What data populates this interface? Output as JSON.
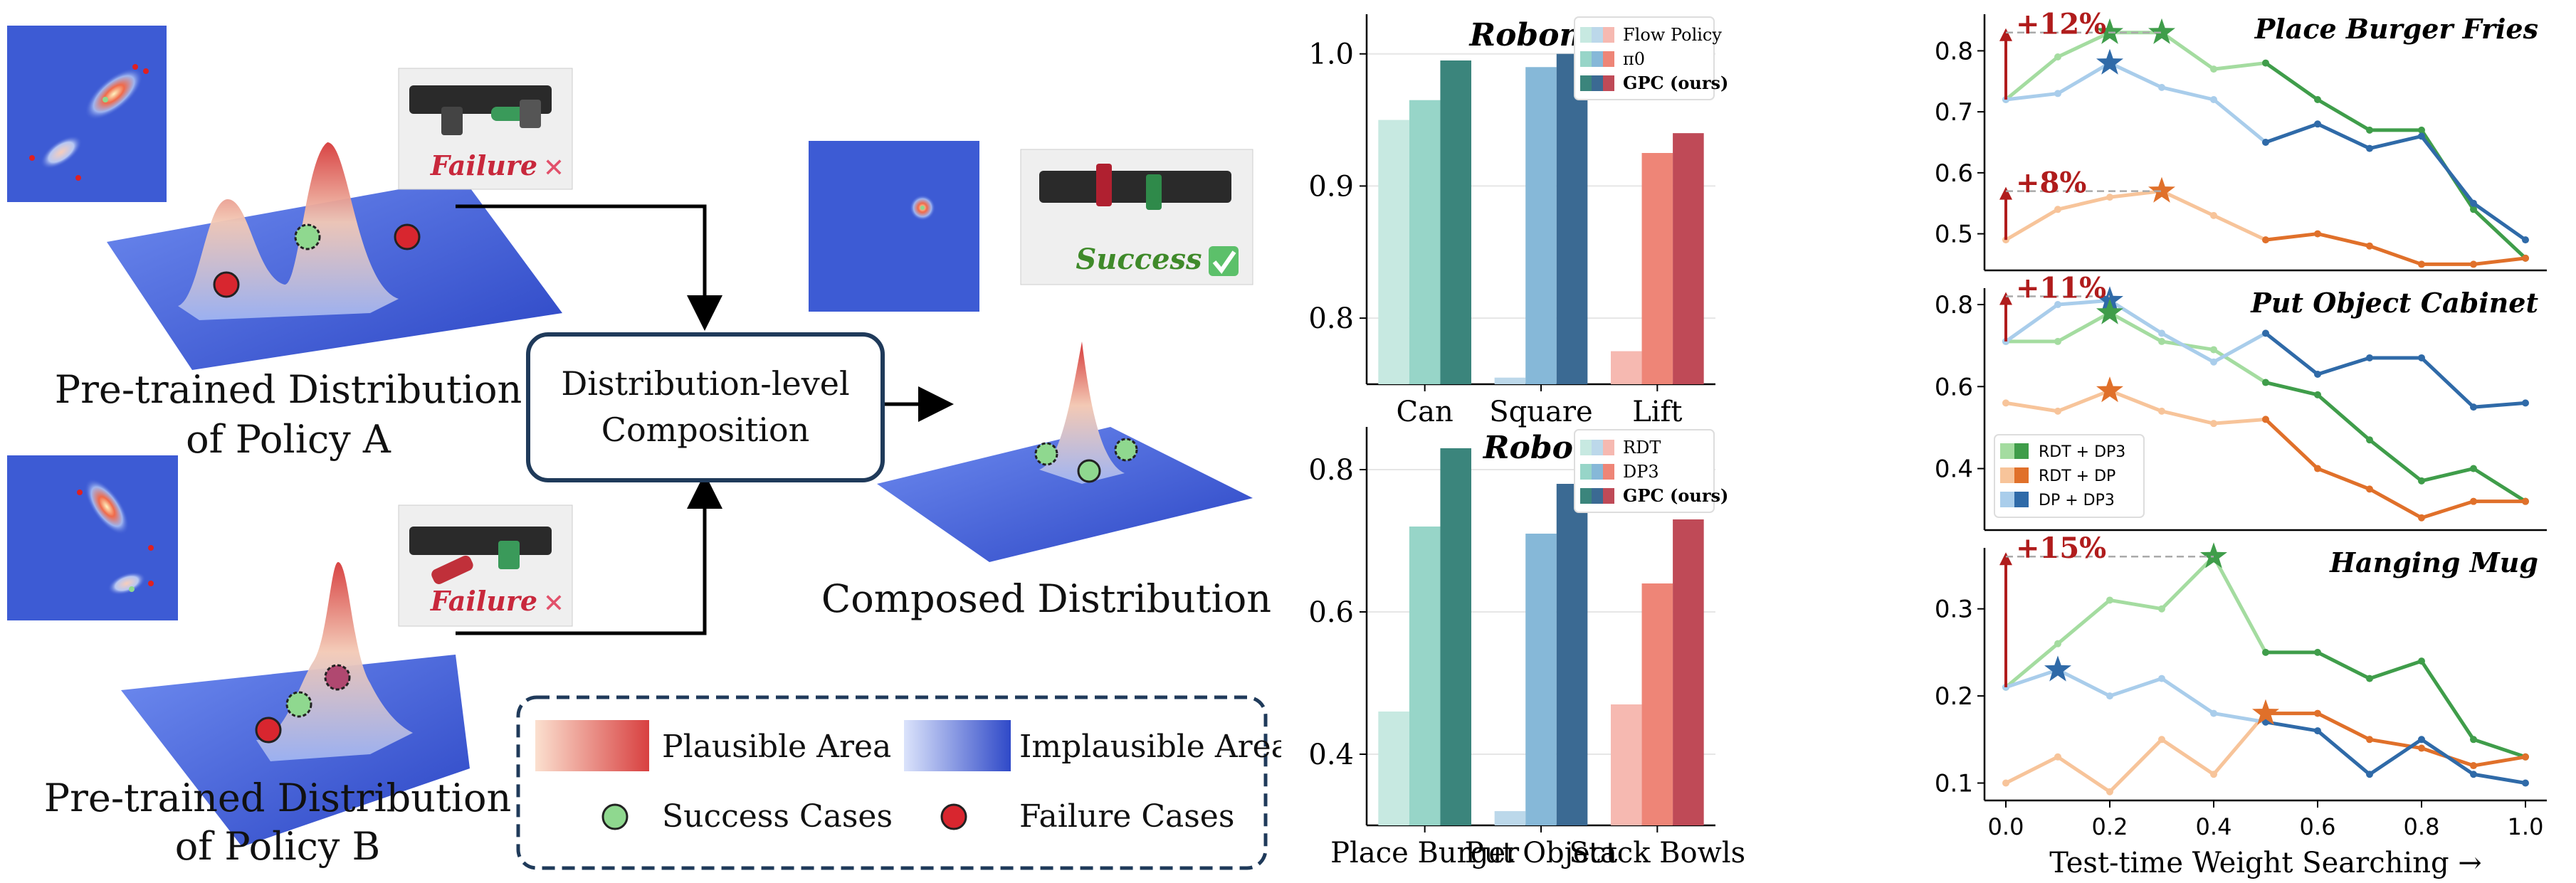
{
  "diagram": {
    "policy_a_label": [
      "Pre-trained Distribution",
      "of Policy A"
    ],
    "policy_b_label": [
      "Pre-trained Distribution",
      "of Policy B"
    ],
    "composition_box": [
      "Distribution-level",
      "Composition"
    ],
    "composed_label": "Composed Distribution",
    "failure_tag": "Failure",
    "success_tag": "Success",
    "legend": {
      "plausible": "Plausible Area",
      "implausible": "Implausible Area",
      "success": "Success Cases",
      "failure": "Failure Cases"
    },
    "colors": {
      "surface": "#3f5bd6",
      "peak": "#d63a3a",
      "success_dot": "#8fd88f",
      "failure_dot": "#d8262f",
      "box_border": "#1f3a5a"
    }
  },
  "chart_data": [
    {
      "type": "bar",
      "title": "Robomimic",
      "categories": [
        "Can",
        "Square",
        "Lift"
      ],
      "ylim": [
        0.75,
        1.03
      ],
      "yticks": [
        0.8,
        0.9,
        1.0
      ],
      "series": [
        {
          "name": "Flow Policy",
          "values": [
            0.95,
            0.755,
            0.775
          ]
        },
        {
          "name": "π0",
          "values": [
            0.965,
            0.99,
            0.925
          ]
        },
        {
          "name": "GPC (ours)",
          "values": [
            0.995,
            1.0,
            0.94
          ]
        }
      ],
      "legend_position": "top-right",
      "colors": [
        [
          "#c7e9e1",
          "#bcd8ea",
          "#f6b9b1"
        ],
        [
          "#97d5c8",
          "#86b8d8",
          "#ee8577"
        ],
        [
          "#3b857c",
          "#3b6a93",
          "#bf4a57"
        ]
      ]
    },
    {
      "type": "bar",
      "title": "RoboTwin",
      "categories": [
        "Place Burger",
        "Put Object",
        "Stack Bowls"
      ],
      "ylim": [
        0.3,
        0.86
      ],
      "yticks": [
        0.4,
        0.6,
        0.8
      ],
      "series": [
        {
          "name": "RDT",
          "values": [
            0.46,
            0.32,
            0.47
          ]
        },
        {
          "name": "DP3",
          "values": [
            0.72,
            0.71,
            0.64
          ]
        },
        {
          "name": "GPC (ours)",
          "values": [
            0.83,
            0.78,
            0.73
          ]
        }
      ],
      "legend_position": "top-right",
      "colors": [
        [
          "#c7e9e1",
          "#bcd8ea",
          "#f6b9b1"
        ],
        [
          "#97d5c8",
          "#86b8d8",
          "#ee8577"
        ],
        [
          "#3b857c",
          "#3b6a93",
          "#bf4a57"
        ]
      ]
    },
    {
      "type": "line",
      "title": "Place Burger Fries",
      "x": [
        0.0,
        0.1,
        0.2,
        0.3,
        0.4,
        0.5,
        0.6,
        0.7,
        0.8,
        0.9,
        1.0
      ],
      "ylim": [
        0.44,
        0.86
      ],
      "yticks": [
        0.5,
        0.6,
        0.7,
        0.8
      ],
      "series": [
        {
          "name": "RDT + DP3",
          "values": [
            0.72,
            0.79,
            0.83,
            0.83,
            0.77,
            0.78,
            0.72,
            0.67,
            0.67,
            0.54,
            0.46
          ]
        },
        {
          "name": "RDT + DP",
          "values": [
            0.49,
            0.54,
            0.56,
            0.57,
            0.53,
            0.49,
            0.5,
            0.48,
            0.45,
            0.45,
            0.46
          ]
        },
        {
          "name": "DP + DP3",
          "values": [
            0.72,
            0.73,
            0.78,
            0.74,
            0.72,
            0.65,
            0.68,
            0.64,
            0.66,
            0.55,
            0.49
          ]
        }
      ],
      "stars": [
        {
          "series": 0,
          "x": 0.2,
          "y": 0.83
        },
        {
          "series": 0,
          "x": 0.3,
          "y": 0.83
        },
        {
          "series": 2,
          "x": 0.2,
          "y": 0.78
        },
        {
          "series": 1,
          "x": 0.3,
          "y": 0.57
        }
      ],
      "annotations": [
        {
          "text": "+12%",
          "from": 0.72,
          "to": 0.83,
          "x_end": 0.3
        },
        {
          "text": "+8%",
          "from": 0.49,
          "to": 0.57,
          "x_end": 0.3
        }
      ]
    },
    {
      "type": "line",
      "title": "Put Object Cabinet",
      "x": [
        0.0,
        0.1,
        0.2,
        0.3,
        0.4,
        0.5,
        0.6,
        0.7,
        0.8,
        0.9,
        1.0
      ],
      "ylim": [
        0.25,
        0.84
      ],
      "yticks": [
        0.4,
        0.6,
        0.8
      ],
      "series": [
        {
          "name": "RDT + DP3",
          "values": [
            0.71,
            0.71,
            0.78,
            0.71,
            0.69,
            0.61,
            0.58,
            0.47,
            0.37,
            0.4,
            0.32
          ]
        },
        {
          "name": "RDT + DP",
          "values": [
            0.56,
            0.54,
            0.59,
            0.54,
            0.51,
            0.52,
            0.4,
            0.35,
            0.28,
            0.32,
            0.32
          ]
        },
        {
          "name": "DP + DP3",
          "values": [
            0.71,
            0.8,
            0.81,
            0.73,
            0.66,
            0.73,
            0.63,
            0.67,
            0.67,
            0.55,
            0.56
          ]
        }
      ],
      "stars": [
        {
          "series": 2,
          "x": 0.2,
          "y": 0.81
        },
        {
          "series": 0,
          "x": 0.2,
          "y": 0.78
        },
        {
          "series": 1,
          "x": 0.2,
          "y": 0.59
        }
      ],
      "annotations": [
        {
          "text": "+11%",
          "from": 0.71,
          "to": 0.82,
          "x_end": 0.2
        }
      ],
      "legend": [
        "RDT + DP3",
        "RDT + DP",
        "DP + DP3"
      ],
      "legend_position": "lower-left"
    },
    {
      "type": "line",
      "title": "Hanging Mug",
      "x": [
        0.0,
        0.1,
        0.2,
        0.3,
        0.4,
        0.5,
        0.6,
        0.7,
        0.8,
        0.9,
        1.0
      ],
      "ylim": [
        0.08,
        0.37
      ],
      "yticks": [
        0.1,
        0.2,
        0.3
      ],
      "xticks": [
        0.0,
        0.2,
        0.4,
        0.6,
        0.8,
        1.0
      ],
      "xlabel": "Test-time Weight Searching →",
      "series": [
        {
          "name": "RDT + DP3",
          "values": [
            0.21,
            0.26,
            0.31,
            0.3,
            0.36,
            0.25,
            0.25,
            0.22,
            0.24,
            0.15,
            0.13
          ]
        },
        {
          "name": "RDT + DP",
          "values": [
            0.1,
            0.13,
            0.09,
            0.15,
            0.11,
            0.18,
            0.18,
            0.15,
            0.14,
            0.12,
            0.13
          ]
        },
        {
          "name": "DP + DP3",
          "values": [
            0.21,
            0.23,
            0.2,
            0.22,
            0.18,
            0.17,
            0.16,
            0.11,
            0.15,
            0.11,
            0.1
          ]
        }
      ],
      "stars": [
        {
          "series": 0,
          "x": 0.4,
          "y": 0.36
        },
        {
          "series": 2,
          "x": 0.1,
          "y": 0.23
        },
        {
          "series": 1,
          "x": 0.5,
          "y": 0.18
        }
      ],
      "annotations": [
        {
          "text": "+15%",
          "from": 0.21,
          "to": 0.36,
          "x_end": 0.4
        }
      ]
    }
  ]
}
